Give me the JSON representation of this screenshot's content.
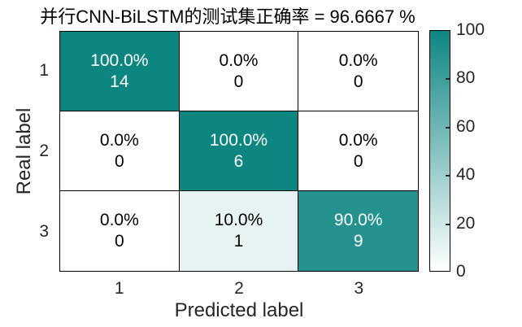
{
  "chart_data": {
    "type": "heatmap",
    "title": "并行CNN-BiLSTM的测试集正确率 = 96.6667 %",
    "xlabel": "Predicted label",
    "ylabel": "Real label",
    "x_ticks": [
      "1",
      "2",
      "3"
    ],
    "y_ticks": [
      "1",
      "2",
      "3"
    ],
    "matrix": [
      [
        {
          "percent": "100.0%",
          "count": "14",
          "value": 100
        },
        {
          "percent": "0.0%",
          "count": "0",
          "value": 0
        },
        {
          "percent": "0.0%",
          "count": "0",
          "value": 0
        }
      ],
      [
        {
          "percent": "0.0%",
          "count": "0",
          "value": 0
        },
        {
          "percent": "100.0%",
          "count": "6",
          "value": 100
        },
        {
          "percent": "0.0%",
          "count": "0",
          "value": 0
        }
      ],
      [
        {
          "percent": "0.0%",
          "count": "0",
          "value": 0
        },
        {
          "percent": "10.0%",
          "count": "1",
          "value": 10
        },
        {
          "percent": "90.0%",
          "count": "9",
          "value": 90
        }
      ]
    ],
    "colorbar": {
      "min": 0,
      "max": 100,
      "ticks": [
        {
          "label": "0",
          "value": 0
        },
        {
          "label": "20",
          "value": 20
        },
        {
          "label": "40",
          "value": 40
        },
        {
          "label": "60",
          "value": 60
        },
        {
          "label": "80",
          "value": 80
        },
        {
          "label": "100",
          "value": 100
        }
      ],
      "color_min": "#ffffff",
      "color_max": "#0d8682"
    },
    "cell_text_light": "#ffffff",
    "cell_text_dark": "#000000",
    "axis_text_color": "#262626",
    "light_text_threshold": 60
  }
}
